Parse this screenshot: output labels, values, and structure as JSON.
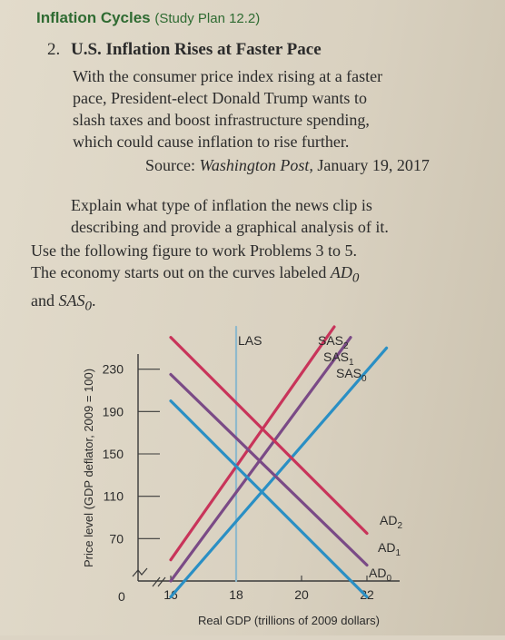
{
  "header": {
    "title": "Inflation Cycles",
    "subtitle": "(Study Plan 12.2)"
  },
  "problem": {
    "number": "2.",
    "title": "U.S. Inflation Rises at Faster Pace",
    "lines": [
      "With the consumer price index rising at a faster",
      "pace, President-elect Donald Trump wants to",
      "slash taxes and boost infrastructure spending,",
      "which could cause inflation to rise further."
    ],
    "source_label": "Source: ",
    "source_pub": "Washington Post,",
    "source_date": " January 19, 2017",
    "explain_lines": [
      "Explain what type of inflation the news clip is",
      "describing and provide a graphical analysis of it."
    ]
  },
  "instructions": {
    "line1": "Use the following figure to work Problems 3 to 5.",
    "line2_pre": "The economy starts out on the curves labeled ",
    "ad0": "AD",
    "ad0_sub": "0",
    "line3_pre": "and ",
    "sas0": "SAS",
    "sas0_sub": "0",
    "line3_post": "."
  },
  "chart_data": {
    "type": "line",
    "xlabel": "Real GDP (trillions of 2009 dollars)",
    "ylabel": "Price level (GDP deflator, 2009 = 100)",
    "x_ticks": [
      "16",
      "18",
      "20",
      "22"
    ],
    "y_ticks": [
      "70",
      "110",
      "150",
      "190",
      "230"
    ],
    "origin_label": "0",
    "xlim": [
      15,
      23
    ],
    "ylim": [
      30,
      270
    ],
    "lines": [
      {
        "name": "LAS",
        "label": "LAS",
        "sub": "",
        "color": "#8fb9cc",
        "points": [
          [
            18,
            30
          ],
          [
            18,
            270
          ]
        ]
      },
      {
        "name": "SAS2",
        "label": "SAS",
        "sub": "2",
        "color": "#c8345a",
        "points": [
          [
            16,
            50
          ],
          [
            21,
            270
          ]
        ]
      },
      {
        "name": "SAS1",
        "label": "SAS",
        "sub": "1",
        "color": "#7a4a86",
        "points": [
          [
            16,
            30
          ],
          [
            21.5,
            260
          ]
        ]
      },
      {
        "name": "SAS0",
        "label": "SAS",
        "sub": "0",
        "color": "#2a8fc4",
        "points": [
          [
            16,
            15
          ],
          [
            22.6,
            250
          ]
        ]
      },
      {
        "name": "AD2",
        "label": "AD",
        "sub": "2",
        "color": "#c8345a",
        "points": [
          [
            16,
            260
          ],
          [
            22,
            75
          ]
        ]
      },
      {
        "name": "AD1",
        "label": "AD",
        "sub": "1",
        "color": "#7a4a86",
        "points": [
          [
            16,
            225
          ],
          [
            22,
            45
          ]
        ]
      },
      {
        "name": "AD0",
        "label": "AD",
        "sub": "0",
        "color": "#2a8fc4",
        "points": [
          [
            16,
            200
          ],
          [
            22,
            15
          ]
        ]
      }
    ]
  }
}
